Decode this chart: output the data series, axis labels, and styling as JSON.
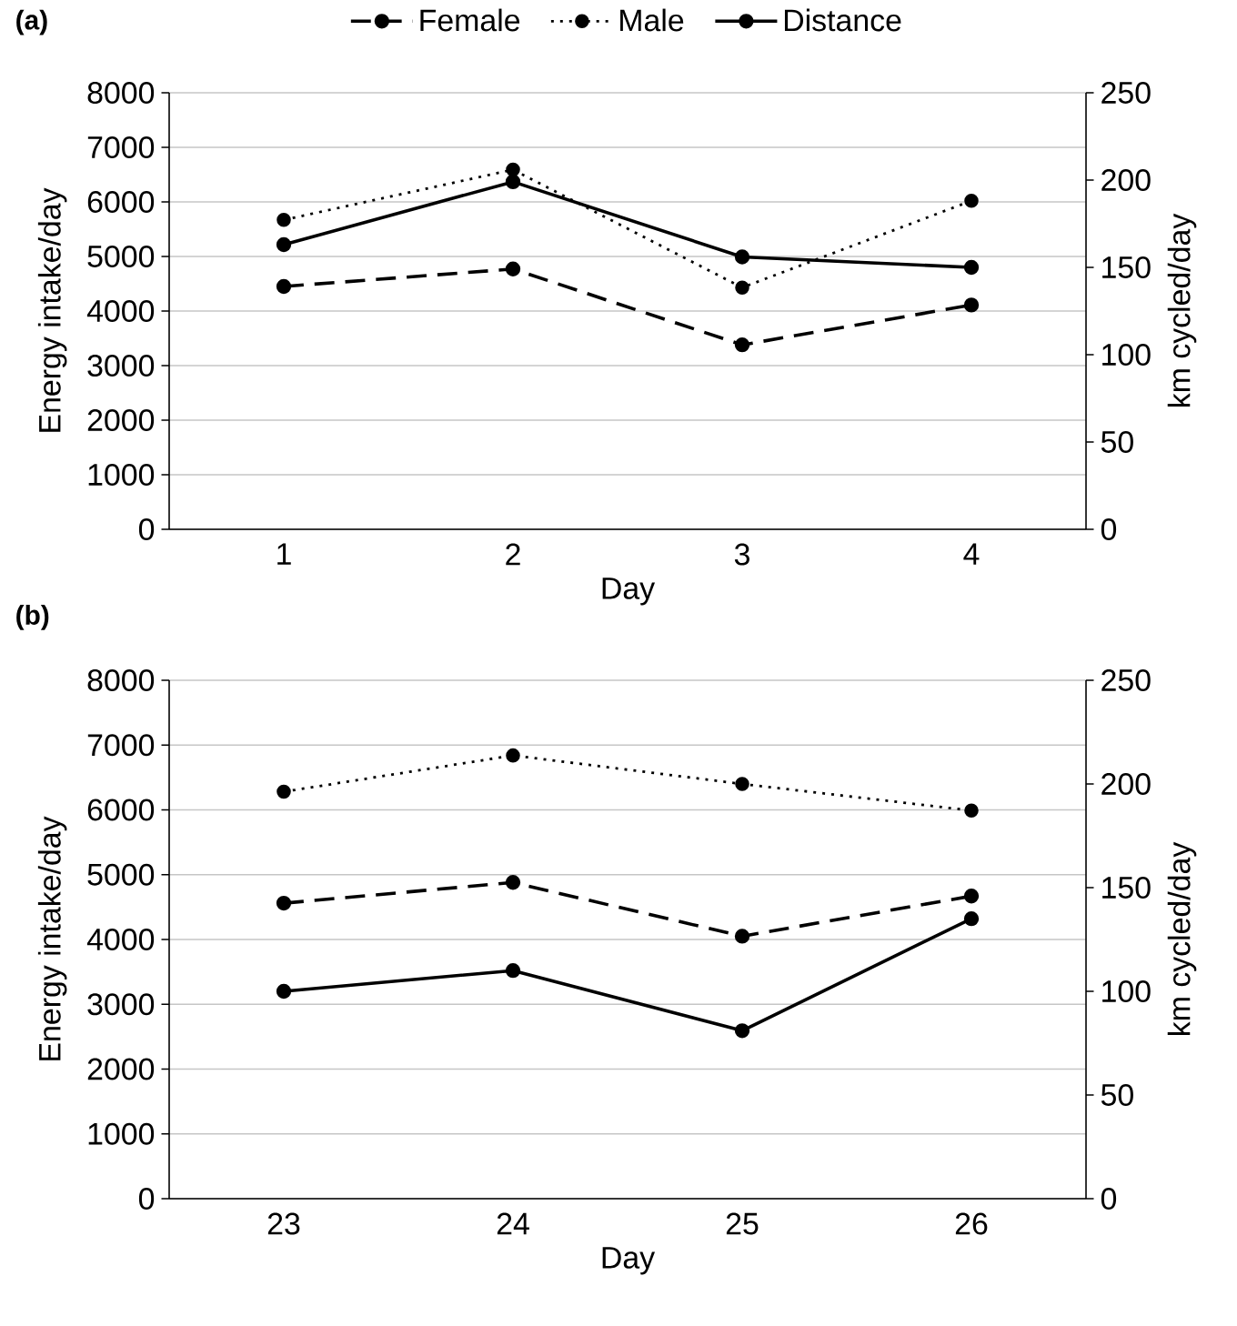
{
  "chart_data": [
    {
      "type": "line",
      "title": "(a)",
      "xlabel": "Day",
      "ylabel": "Energy intake/day",
      "y2label": "km cycled/day",
      "categories": [
        "1",
        "2",
        "3",
        "4"
      ],
      "series": [
        {
          "name": "Female",
          "color": "#000000",
          "line_style": "dashed",
          "values": [
            4450,
            4770,
            3380,
            4110
          ]
        },
        {
          "name": "Male",
          "color": "#000000",
          "line_style": "dotted",
          "values": [
            5670,
            6590,
            4430,
            6020
          ]
        },
        {
          "name": "Distance",
          "color": "#000000",
          "line_style": "solid",
          "axis": "y2",
          "values": [
            163,
            199,
            156,
            150
          ]
        }
      ],
      "ylim": [
        0,
        8000
      ],
      "yticks": [
        0,
        1000,
        2000,
        3000,
        4000,
        5000,
        6000,
        7000,
        8000
      ],
      "y2lim": [
        0,
        250
      ],
      "y2ticks": [
        0,
        50,
        100,
        150,
        200,
        250
      ],
      "grid": "y",
      "legend": "top",
      "marker": "circle"
    },
    {
      "type": "line",
      "title": "(b)",
      "xlabel": "Day",
      "ylabel": "Energy intake/day",
      "y2label": "km cycled/day",
      "categories": [
        "23",
        "24",
        "25",
        "26"
      ],
      "series": [
        {
          "color": "#000000",
          "line_style": "dashed",
          "values": [
            4560,
            4880,
            4050,
            4670
          ]
        },
        {
          "color": "#000000",
          "line_style": "dotted",
          "values": [
            6280,
            6840,
            6400,
            5990
          ]
        },
        {
          "color": "#000000",
          "line_style": "solid",
          "axis": "y2",
          "values": [
            100,
            110,
            81,
            135
          ]
        }
      ],
      "ylim": [
        0,
        8000
      ],
      "yticks": [
        0,
        1000,
        2000,
        3000,
        4000,
        5000,
        6000,
        7000,
        8000
      ],
      "y2lim": [
        0,
        250
      ],
      "y2ticks": [
        0,
        50,
        100,
        150,
        200,
        250
      ],
      "grid": "y",
      "marker": "circle"
    }
  ]
}
